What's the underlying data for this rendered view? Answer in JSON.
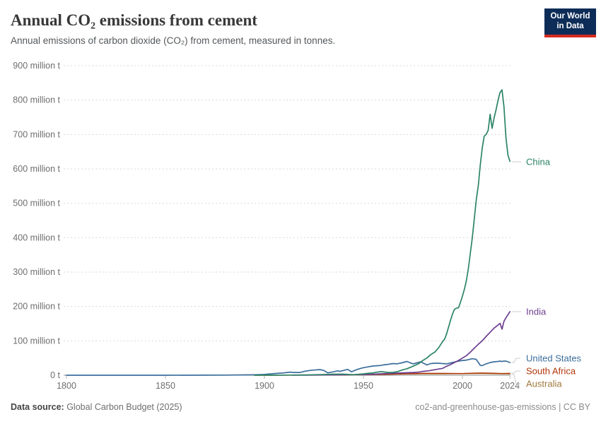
{
  "header": {
    "title": "Annual CO₂ emissions from cement",
    "subtitle": "Annual emissions of carbon dioxide (CO₂) from cement, measured in tonnes.",
    "logo": {
      "line1": "Our World",
      "line2": "in Data"
    }
  },
  "footer": {
    "source_label": "Data source:",
    "source_value": " Global Carbon Budget (2025)",
    "note": "co2-and-greenhouse-gas-emissions | CC BY"
  },
  "colors": {
    "background": "#ffffff",
    "grid": "#d9d9d9",
    "axis": "#8f8f8f",
    "tick": "#b5b5b5",
    "tick_label": "#6e6e6e",
    "connector": "#cccccc",
    "title": "#383838",
    "subtitle": "#53575b",
    "logo_bg": "#0D2D58",
    "logo_accent": "#D42B21"
  },
  "chart_data": {
    "type": "line",
    "title": "Annual CO₂ emissions from cement",
    "xlabel": "",
    "ylabel": "",
    "unit": "million t",
    "x_range": [
      1800,
      2024
    ],
    "y_range": [
      0,
      900
    ],
    "grid": true,
    "legend_position": "right-edge-labels",
    "y_ticks": [
      {
        "value": 0,
        "label": "0 t"
      },
      {
        "value": 100,
        "label": "100 million t"
      },
      {
        "value": 200,
        "label": "200 million t"
      },
      {
        "value": 300,
        "label": "300 million t"
      },
      {
        "value": 400,
        "label": "400 million t"
      },
      {
        "value": 500,
        "label": "500 million t"
      },
      {
        "value": 600,
        "label": "600 million t"
      },
      {
        "value": 700,
        "label": "700 million t"
      },
      {
        "value": 800,
        "label": "800 million t"
      },
      {
        "value": 900,
        "label": "900 million t"
      }
    ],
    "x_ticks": [
      {
        "value": 1800,
        "label": "1800"
      },
      {
        "value": 1850,
        "label": "1850"
      },
      {
        "value": 1900,
        "label": "1900"
      },
      {
        "value": 1950,
        "label": "1950"
      },
      {
        "value": 2000,
        "label": "2000"
      },
      {
        "value": 2024,
        "label": "2024"
      }
    ],
    "series": [
      {
        "name": "Australia",
        "slug": "australia",
        "color": "#A0793D",
        "width": 1.4,
        "label_y": 543,
        "connector": [
          [
            723,
            530
          ],
          [
            727,
            530
          ],
          [
            730,
            543
          ],
          [
            736,
            543
          ]
        ],
        "points": [
          [
            1900,
            0.05
          ],
          [
            1920,
            0.4
          ],
          [
            1930,
            0.7
          ],
          [
            1940,
            1
          ],
          [
            1950,
            1.5
          ],
          [
            1960,
            2.5
          ],
          [
            1970,
            3.5
          ],
          [
            1980,
            4
          ],
          [
            1990,
            4.2
          ],
          [
            2000,
            4.5
          ],
          [
            2010,
            5
          ],
          [
            2015,
            4.5
          ],
          [
            2020,
            4.2
          ],
          [
            2024,
            4
          ]
        ]
      },
      {
        "name": "South Africa",
        "slug": "south-africa",
        "color": "#B13507",
        "width": 1.4,
        "label_y": 525,
        "connector": [
          [
            723,
            528
          ],
          [
            727,
            528
          ],
          [
            730,
            525
          ],
          [
            736,
            525
          ]
        ],
        "points": [
          [
            1895,
            0.1
          ],
          [
            1910,
            0.3
          ],
          [
            1920,
            0.5
          ],
          [
            1930,
            0.8
          ],
          [
            1940,
            1.2
          ],
          [
            1950,
            1.8
          ],
          [
            1960,
            2.5
          ],
          [
            1970,
            4
          ],
          [
            1980,
            5.5
          ],
          [
            1990,
            5.5
          ],
          [
            2000,
            5
          ],
          [
            2005,
            6
          ],
          [
            2010,
            6.5
          ],
          [
            2015,
            6
          ],
          [
            2020,
            5
          ],
          [
            2024,
            5.5
          ]
        ]
      },
      {
        "name": "United States",
        "slug": "united-states",
        "color": "#3C6E9C",
        "width": 1.7,
        "label_y": 507,
        "connector": [
          [
            723,
            513
          ],
          [
            727,
            513
          ],
          [
            730,
            507
          ],
          [
            736,
            507
          ]
        ],
        "points": [
          [
            1800,
            0.02
          ],
          [
            1850,
            0.1
          ],
          [
            1870,
            0.2
          ],
          [
            1880,
            0.4
          ],
          [
            1890,
            1
          ],
          [
            1895,
            1.5
          ],
          [
            1900,
            2.5
          ],
          [
            1905,
            5
          ],
          [
            1910,
            7
          ],
          [
            1913,
            9
          ],
          [
            1915,
            8
          ],
          [
            1918,
            8
          ],
          [
            1920,
            11
          ],
          [
            1923,
            14
          ],
          [
            1925,
            15
          ],
          [
            1928,
            16.5
          ],
          [
            1930,
            14
          ],
          [
            1932,
            7
          ],
          [
            1933,
            8
          ],
          [
            1935,
            10
          ],
          [
            1937,
            13
          ],
          [
            1938,
            11
          ],
          [
            1940,
            14
          ],
          [
            1942,
            17
          ],
          [
            1944,
            10
          ],
          [
            1946,
            15
          ],
          [
            1948,
            19
          ],
          [
            1950,
            22
          ],
          [
            1953,
            25
          ],
          [
            1955,
            27
          ],
          [
            1958,
            28
          ],
          [
            1960,
            30
          ],
          [
            1963,
            32
          ],
          [
            1965,
            34
          ],
          [
            1967,
            33
          ],
          [
            1970,
            37
          ],
          [
            1972,
            40
          ],
          [
            1975,
            33
          ],
          [
            1977,
            36
          ],
          [
            1979,
            39
          ],
          [
            1982,
            30
          ],
          [
            1984,
            34
          ],
          [
            1986,
            35
          ],
          [
            1988,
            35
          ],
          [
            1990,
            34
          ],
          [
            1992,
            33
          ],
          [
            1995,
            37
          ],
          [
            1998,
            41
          ],
          [
            2000,
            43
          ],
          [
            2002,
            44
          ],
          [
            2005,
            48
          ],
          [
            2007,
            46
          ],
          [
            2009,
            29
          ],
          [
            2010,
            28
          ],
          [
            2012,
            33
          ],
          [
            2014,
            37
          ],
          [
            2016,
            39
          ],
          [
            2018,
            40
          ],
          [
            2019,
            41
          ],
          [
            2020,
            40
          ],
          [
            2021,
            41
          ],
          [
            2022,
            41
          ],
          [
            2023,
            39
          ],
          [
            2024,
            37
          ]
        ]
      },
      {
        "name": "India",
        "slug": "india",
        "color": "#6D3E91",
        "width": 1.7,
        "label_y": 441,
        "connector": [
          [
            724,
            441
          ],
          [
            737,
            441
          ]
        ],
        "points": [
          [
            1914,
            0.2
          ],
          [
            1920,
            0.3
          ],
          [
            1930,
            0.7
          ],
          [
            1940,
            1.3
          ],
          [
            1950,
            2
          ],
          [
            1955,
            3
          ],
          [
            1960,
            4.5
          ],
          [
            1965,
            5.5
          ],
          [
            1970,
            7
          ],
          [
            1975,
            8
          ],
          [
            1978,
            9
          ],
          [
            1980,
            11
          ],
          [
            1983,
            13
          ],
          [
            1986,
            16
          ],
          [
            1988,
            18
          ],
          [
            1990,
            20
          ],
          [
            1992,
            26
          ],
          [
            1994,
            31
          ],
          [
            1996,
            37
          ],
          [
            1998,
            43
          ],
          [
            2000,
            50
          ],
          [
            2002,
            57
          ],
          [
            2004,
            67
          ],
          [
            2006,
            79
          ],
          [
            2008,
            90
          ],
          [
            2010,
            100
          ],
          [
            2012,
            113
          ],
          [
            2014,
            125
          ],
          [
            2016,
            137
          ],
          [
            2018,
            146
          ],
          [
            2019,
            151
          ],
          [
            2020,
            134
          ],
          [
            2021,
            157
          ],
          [
            2022,
            167
          ],
          [
            2023,
            176
          ],
          [
            2024,
            185
          ]
        ]
      },
      {
        "name": "China",
        "slug": "china",
        "color": "#2C8465",
        "width": 1.7,
        "label_y": 229,
        "connector": [
          [
            724,
            229
          ],
          [
            737,
            229
          ]
        ],
        "points": [
          [
            1895,
            0.1
          ],
          [
            1900,
            0.2
          ],
          [
            1905,
            0.3
          ],
          [
            1910,
            0.4
          ],
          [
            1915,
            0.6
          ],
          [
            1920,
            0.9
          ],
          [
            1925,
            1.4
          ],
          [
            1930,
            2
          ],
          [
            1935,
            3
          ],
          [
            1940,
            3
          ],
          [
            1945,
            1.5
          ],
          [
            1950,
            4
          ],
          [
            1952,
            5.5
          ],
          [
            1955,
            7
          ],
          [
            1957,
            9
          ],
          [
            1959,
            10.5
          ],
          [
            1961,
            9
          ],
          [
            1963,
            8
          ],
          [
            1965,
            8.5
          ],
          [
            1967,
            10
          ],
          [
            1970,
            16
          ],
          [
            1972,
            19
          ],
          [
            1975,
            26
          ],
          [
            1978,
            34
          ],
          [
            1980,
            43
          ],
          [
            1982,
            50
          ],
          [
            1984,
            60
          ],
          [
            1986,
            67
          ],
          [
            1988,
            80
          ],
          [
            1990,
            98
          ],
          [
            1991,
            105
          ],
          [
            1992,
            120
          ],
          [
            1993,
            140
          ],
          [
            1994,
            160
          ],
          [
            1995,
            178
          ],
          [
            1996,
            192
          ],
          [
            1997,
            195
          ],
          [
            1998,
            196
          ],
          [
            1999,
            212
          ],
          [
            2000,
            230
          ],
          [
            2001,
            250
          ],
          [
            2002,
            275
          ],
          [
            2003,
            310
          ],
          [
            2004,
            355
          ],
          [
            2005,
            400
          ],
          [
            2006,
            455
          ],
          [
            2007,
            510
          ],
          [
            2008,
            550
          ],
          [
            2009,
            610
          ],
          [
            2010,
            660
          ],
          [
            2011,
            695
          ],
          [
            2012,
            700
          ],
          [
            2013,
            712
          ],
          [
            2014,
            759
          ],
          [
            2015,
            718
          ],
          [
            2016,
            748
          ],
          [
            2017,
            772
          ],
          [
            2018,
            800
          ],
          [
            2019,
            822
          ],
          [
            2020,
            830
          ],
          [
            2021,
            780
          ],
          [
            2022,
            690
          ],
          [
            2023,
            640
          ],
          [
            2024,
            622
          ]
        ]
      }
    ]
  }
}
